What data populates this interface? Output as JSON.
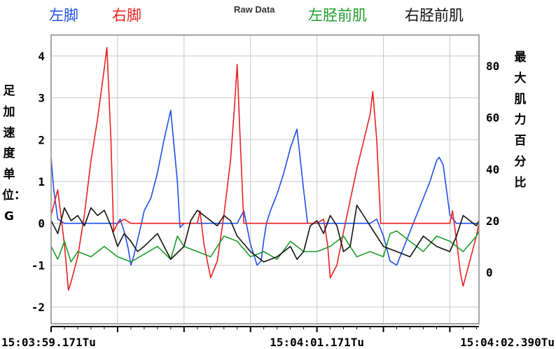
{
  "header": {
    "title": "Raw Data",
    "legend": [
      {
        "label": "左脚",
        "color": "#1f4fe8"
      },
      {
        "label": "右脚",
        "color": "#e82020"
      },
      {
        "label": "左胫前肌",
        "color": "#1e9c2a"
      },
      {
        "label": "右胫前肌",
        "color": "#111111"
      }
    ]
  },
  "axes": {
    "left_label": "足加速度 单位：G",
    "right_label": "最大肌力百分比"
  },
  "chart_data": {
    "type": "line",
    "title": "Raw Data",
    "ylabel_left": "足加速度 单位：G",
    "ylabel_right": "最大肌力百分比",
    "ylim_left": [
      -2.4,
      4.5
    ],
    "ylim_right": [
      -20,
      92
    ],
    "yticks_left": [
      "4",
      "3",
      "2",
      "1",
      "0",
      "-1",
      "-2"
    ],
    "yticks_right": [
      "80",
      "60",
      "40",
      "20",
      "0"
    ],
    "xlim": [
      0,
      3.219
    ],
    "x_ticks": [
      "15:03:59.171Tu",
      "15:04:01.171Tu",
      "15:04:02.390Tu"
    ],
    "x_tick_positions": [
      0,
      2.0,
      3.219
    ],
    "grid": true,
    "series": [
      {
        "name": "左脚",
        "axis": "left",
        "color": "#1f4fe8",
        "x": [
          0.0,
          0.02,
          0.05,
          0.1,
          0.2,
          0.3,
          0.4,
          0.5,
          0.52,
          0.55,
          0.58,
          0.6,
          0.62,
          0.65,
          0.68,
          0.7,
          0.75,
          0.8,
          0.85,
          0.9,
          0.95,
          0.97,
          1.0,
          1.02,
          1.05,
          1.1,
          1.2,
          1.3,
          1.4,
          1.45,
          1.5,
          1.55,
          1.58,
          1.6,
          1.62,
          1.65,
          1.7,
          1.75,
          1.8,
          1.85,
          1.9,
          1.93,
          1.96,
          1.98,
          2.0,
          2.05,
          2.1,
          2.2,
          2.3,
          2.4,
          2.45,
          2.5,
          2.55,
          2.6,
          2.65,
          2.7,
          2.75,
          2.8,
          2.85,
          2.9,
          2.92,
          2.95,
          3.0,
          3.05,
          3.1,
          3.219
        ],
        "y": [
          1.55,
          0.8,
          0.1,
          0.0,
          0.0,
          0.0,
          0.0,
          0.0,
          0.1,
          -0.2,
          -0.6,
          -1.0,
          -0.8,
          -0.4,
          0.0,
          0.3,
          0.6,
          1.2,
          2.0,
          2.7,
          1.0,
          -0.1,
          0.0,
          0.0,
          0.0,
          0.0,
          0.0,
          0.0,
          0.0,
          0.3,
          -0.5,
          -1.0,
          -0.9,
          -0.4,
          0.0,
          0.3,
          0.7,
          1.2,
          1.8,
          2.25,
          0.8,
          0.0,
          0.0,
          0.0,
          0.0,
          0.0,
          0.0,
          0.0,
          0.0,
          0.0,
          0.1,
          -0.3,
          -0.9,
          -1.0,
          -0.6,
          -0.2,
          0.2,
          0.6,
          1.0,
          1.5,
          1.58,
          1.4,
          0.2,
          0.0,
          0.0,
          0.0
        ]
      },
      {
        "name": "右脚",
        "axis": "left",
        "color": "#e82020",
        "x": [
          0.0,
          0.05,
          0.1,
          0.13,
          0.15,
          0.2,
          0.25,
          0.3,
          0.35,
          0.4,
          0.42,
          0.45,
          0.47,
          0.5,
          0.55,
          0.6,
          0.7,
          0.8,
          1.0,
          1.1,
          1.12,
          1.15,
          1.2,
          1.25,
          1.3,
          1.35,
          1.38,
          1.4,
          1.42,
          1.45,
          1.5,
          1.6,
          1.8,
          2.0,
          2.05,
          2.08,
          2.1,
          2.15,
          2.2,
          2.3,
          2.4,
          2.42,
          2.45,
          2.48,
          2.5,
          2.6,
          2.8,
          3.0,
          3.02,
          3.05,
          3.08,
          3.1,
          3.15,
          3.2,
          3.219
        ],
        "y": [
          0.2,
          0.8,
          -0.5,
          -1.6,
          -1.4,
          -0.8,
          0.2,
          1.5,
          2.5,
          3.7,
          4.2,
          2.0,
          -0.2,
          0.0,
          0.1,
          0.0,
          0.0,
          0.0,
          0.0,
          0.0,
          0.3,
          -0.5,
          -1.3,
          -0.9,
          0.2,
          1.5,
          2.8,
          3.8,
          2.2,
          0.0,
          0.0,
          0.0,
          0.0,
          0.0,
          0.1,
          -0.5,
          -1.3,
          -1.0,
          -0.2,
          1.3,
          2.6,
          3.15,
          2.0,
          0.0,
          0.0,
          0.0,
          0.0,
          0.0,
          0.3,
          -0.4,
          -1.2,
          -1.5,
          -0.9,
          -0.3,
          0.0
        ]
      },
      {
        "name": "左胫前肌",
        "axis": "right",
        "color": "#1e9c2a",
        "x": [
          0.0,
          0.05,
          0.1,
          0.15,
          0.2,
          0.3,
          0.4,
          0.5,
          0.6,
          0.7,
          0.8,
          0.9,
          0.95,
          1.0,
          1.1,
          1.2,
          1.3,
          1.4,
          1.5,
          1.6,
          1.7,
          1.8,
          1.9,
          2.0,
          2.1,
          2.2,
          2.3,
          2.4,
          2.5,
          2.55,
          2.6,
          2.7,
          2.8,
          2.9,
          3.0,
          3.1,
          3.2,
          3.219
        ],
        "y": [
          10,
          5,
          12,
          4,
          8,
          6,
          10,
          6,
          4,
          7,
          10,
          5,
          14,
          10,
          8,
          6,
          14,
          12,
          6,
          8,
          5,
          12,
          8,
          8,
          10,
          14,
          6,
          8,
          6,
          15,
          16,
          12,
          8,
          14,
          12,
          8,
          14,
          16
        ]
      },
      {
        "name": "右胫前肌",
        "axis": "right",
        "color": "#111111",
        "x": [
          0.0,
          0.05,
          0.1,
          0.15,
          0.2,
          0.25,
          0.3,
          0.35,
          0.4,
          0.45,
          0.5,
          0.55,
          0.6,
          0.65,
          0.7,
          0.8,
          0.9,
          1.0,
          1.05,
          1.1,
          1.15,
          1.2,
          1.25,
          1.3,
          1.35,
          1.4,
          1.5,
          1.6,
          1.7,
          1.8,
          1.85,
          1.9,
          1.95,
          2.0,
          2.05,
          2.1,
          2.15,
          2.2,
          2.25,
          2.3,
          2.35,
          2.4,
          2.5,
          2.6,
          2.7,
          2.8,
          2.9,
          3.0,
          3.05,
          3.1,
          3.15,
          3.2,
          3.219
        ],
        "y": [
          20,
          15,
          25,
          20,
          22,
          18,
          25,
          22,
          24,
          18,
          10,
          15,
          12,
          8,
          10,
          15,
          5,
          10,
          20,
          24,
          22,
          20,
          18,
          22,
          20,
          14,
          8,
          4,
          6,
          10,
          5,
          8,
          18,
          20,
          15,
          22,
          18,
          8,
          10,
          26,
          22,
          18,
          10,
          8,
          6,
          14,
          10,
          8,
          14,
          22,
          20,
          18,
          20
        ]
      }
    ]
  }
}
